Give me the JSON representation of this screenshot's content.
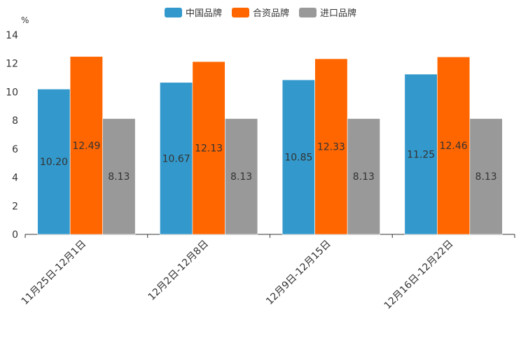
{
  "chart_data": {
    "type": "bar",
    "title": "",
    "ylabel": "%",
    "xlabel": "",
    "ylim": [
      0,
      14
    ],
    "yticks": [
      0,
      2,
      4,
      6,
      8,
      10,
      12,
      14
    ],
    "categories": [
      "11月25日-12月1日",
      "12月2日-12月8日",
      "12月9日-12月15日",
      "12月16日-12月22日"
    ],
    "series": [
      {
        "name": "中国品牌",
        "color": "#3399cc",
        "values": [
          10.2,
          10.67,
          10.85,
          11.25
        ],
        "labels": [
          "10.20",
          "10.67",
          "10.85",
          "11.25"
        ]
      },
      {
        "name": "合资品牌",
        "color": "#ff6600",
        "values": [
          12.49,
          12.13,
          12.33,
          12.46
        ],
        "labels": [
          "12.49",
          "12.13",
          "12.33",
          "12.46"
        ]
      },
      {
        "name": "进口品牌",
        "color": "#999999",
        "values": [
          8.13,
          8.13,
          8.13,
          8.13
        ],
        "labels": [
          "8.13",
          "8.13",
          "8.13",
          "8.13"
        ]
      }
    ],
    "legend_position": "top-center",
    "grid": false
  }
}
